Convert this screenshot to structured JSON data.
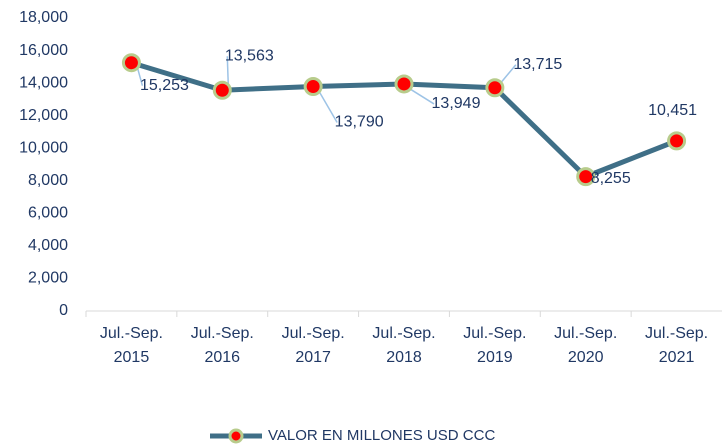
{
  "chart_data": {
    "type": "line",
    "categories": [
      "Jul.-Sep. 2015",
      "Jul.-Sep. 2016",
      "Jul.-Sep. 2017",
      "Jul.-Sep. 2018",
      "Jul.-Sep. 2019",
      "Jul.-Sep. 2020",
      "Jul.-Sep. 2021"
    ],
    "series": [
      {
        "name": "VALOR EN MILLONES USD CCC",
        "color": "#3f6f87",
        "marker_color": "#ff0000",
        "marker_edge": "#b8cc8c",
        "values": [
          15253,
          13563,
          13790,
          13949,
          13715,
          8255,
          10451
        ],
        "value_labels": [
          "15,253",
          "13,563",
          "13,790",
          "13,949",
          "13,715",
          "8,255",
          "10,451"
        ]
      }
    ],
    "ylim": [
      0,
      18000
    ],
    "yticks": [
      0,
      {
        "value": 2000,
        "label": "2,000"
      },
      {
        "value": 4000,
        "label": "4,000"
      },
      {
        "value": 6000,
        "label": "6,000"
      },
      {
        "value": 8000,
        "label": "8,000"
      },
      {
        "value": 10000,
        "label": "10,000"
      },
      {
        "value": 12000,
        "label": "12,000"
      },
      {
        "value": 14000,
        "label": "14,000"
      },
      {
        "value": 16000,
        "label": "16,000"
      },
      {
        "value": 18000,
        "label": "18,000"
      }
    ],
    "grid": false,
    "legend": "bottom"
  }
}
